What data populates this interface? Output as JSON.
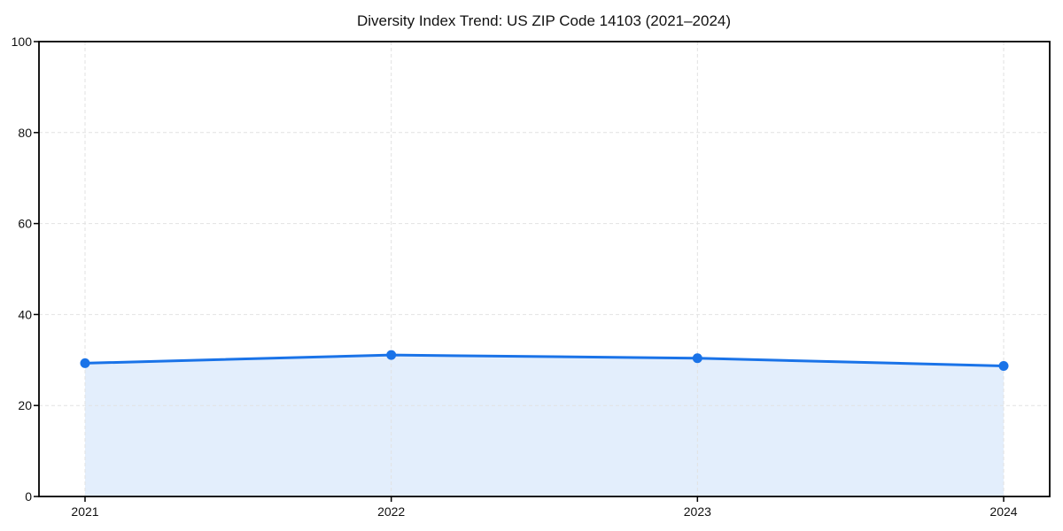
{
  "chart_data": {
    "type": "area",
    "title": "Diversity Index Trend: US ZIP Code 14103 (2021–2024)",
    "x": [
      "2021",
      "2022",
      "2023",
      "2024"
    ],
    "series": [
      {
        "name": "Diversity Index",
        "values": [
          29.3,
          31.1,
          30.4,
          28.7
        ]
      }
    ],
    "xlabel": "",
    "ylabel": "",
    "ylim": [
      0,
      100
    ],
    "yticks": [
      0,
      20,
      40,
      60,
      80,
      100
    ],
    "grid": "dashed-both-axes",
    "legend": "none",
    "colors": {
      "line": "#1a73e8",
      "fill": "rgba(26,115,232,0.12)",
      "grid": "#e2e2e2",
      "axis": "#000000",
      "text": "#111111",
      "background": "#ffffff"
    }
  }
}
